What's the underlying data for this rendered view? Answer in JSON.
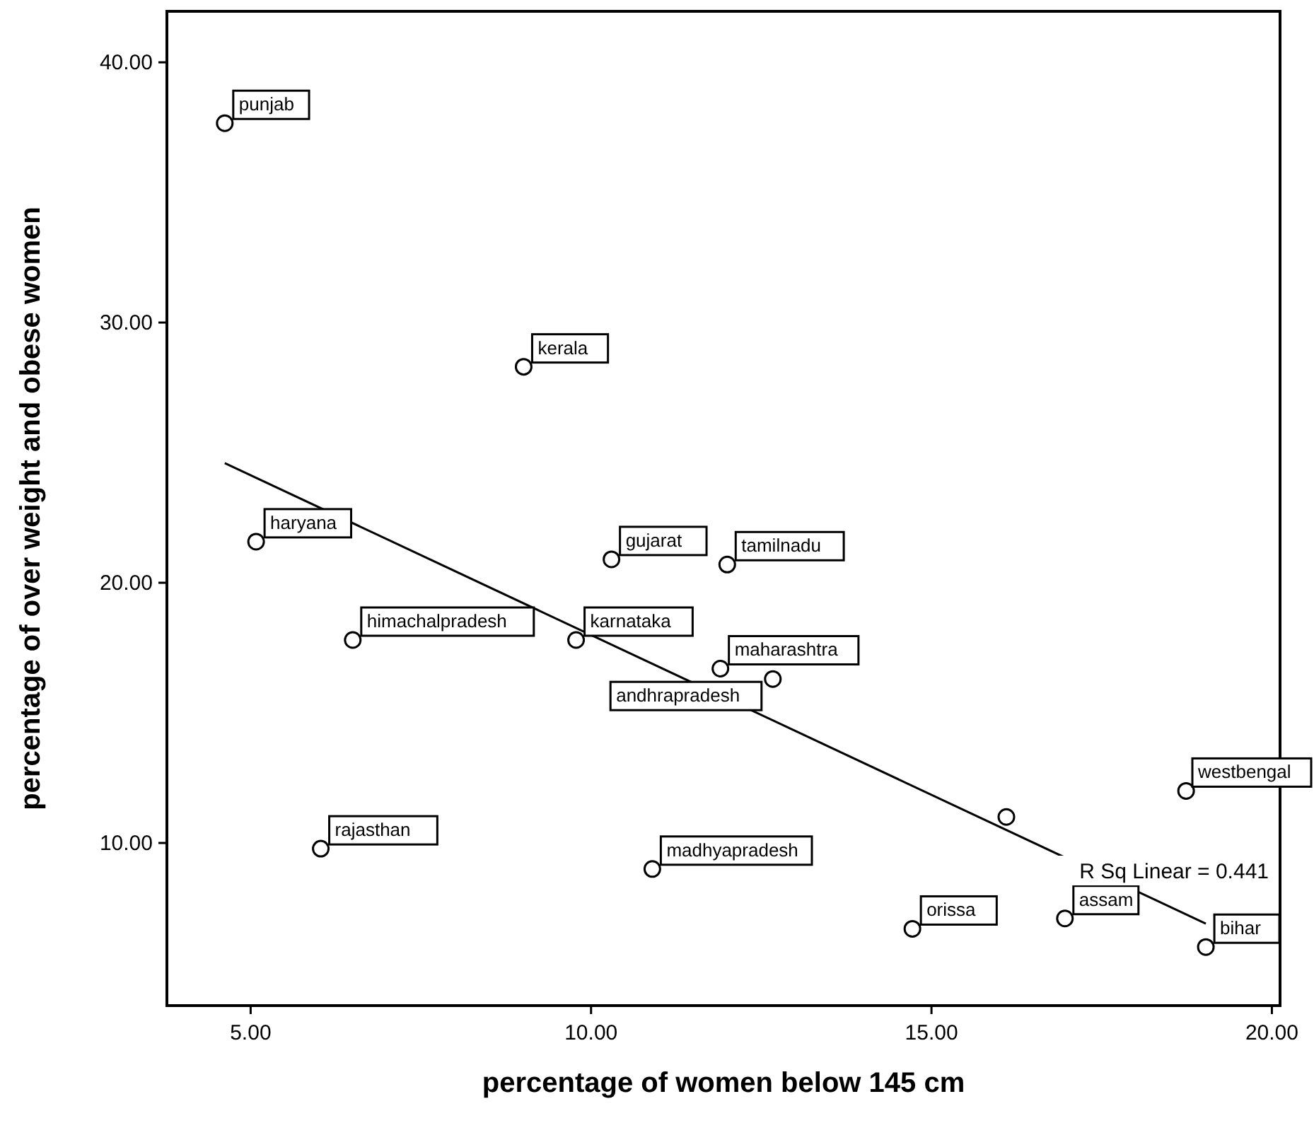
{
  "chart_data": {
    "type": "scatter",
    "xlabel": "percentage of women below 145 cm",
    "ylabel": "percentage of over weight and obese women",
    "xlim": [
      3.77,
      20.12
    ],
    "ylim": [
      3.75,
      41.96
    ],
    "xticks": [
      {
        "value": 5,
        "label": "5.00"
      },
      {
        "value": 10,
        "label": "10.00"
      },
      {
        "value": 15,
        "label": "15.00"
      },
      {
        "value": 20,
        "label": "20.00"
      }
    ],
    "yticks": [
      {
        "value": 10,
        "label": "10.00"
      },
      {
        "value": 20,
        "label": "20.00"
      },
      {
        "value": 30,
        "label": "30.00"
      },
      {
        "value": 40,
        "label": "40.00"
      }
    ],
    "grid": false,
    "marker": "circle",
    "series": [
      {
        "type": "scatter",
        "color": "#000000",
        "x": [
          4.62,
          9.01,
          5.08,
          10.3,
          12.0,
          6.5,
          9.78,
          11.9,
          12.67,
          18.74,
          16.1,
          6.03,
          10.9,
          14.72,
          16.96,
          19.03
        ],
        "values": [
          37.66,
          28.3,
          21.58,
          20.9,
          20.7,
          17.8,
          17.8,
          16.7,
          16.3,
          12.0,
          11.0,
          9.78,
          9.0,
          6.7,
          7.1,
          6.0
        ]
      },
      {
        "type": "line",
        "color": "#000000",
        "marker": "none",
        "x": [
          4.62,
          19.03
        ],
        "values": [
          24.6,
          6.9
        ]
      }
    ],
    "annotations": [
      {
        "text": "punjab",
        "x": 4.62,
        "y": 37.66
      },
      {
        "text": "kerala",
        "x": 9.01,
        "y": 28.3
      },
      {
        "text": "haryana",
        "x": 5.08,
        "y": 21.58
      },
      {
        "text": "gujarat",
        "x": 10.3,
        "y": 20.9
      },
      {
        "text": "tamilnadu",
        "x": 12.0,
        "y": 20.7
      },
      {
        "text": "himachalpradesh",
        "x": 6.5,
        "y": 17.8
      },
      {
        "text": "karnataka",
        "x": 9.78,
        "y": 17.8
      },
      {
        "text": "maharashtra",
        "x": 11.9,
        "y": 16.7
      },
      {
        "text": "andhrapradesh",
        "x": 12.67,
        "y": 16.3
      },
      {
        "text": "westbengal",
        "x": 18.74,
        "y": 12.0
      },
      {
        "text": "rajasthan",
        "x": 6.03,
        "y": 9.78
      },
      {
        "text": "madhyapradesh",
        "x": 10.9,
        "y": 9.0
      },
      {
        "text": "orissa",
        "x": 14.72,
        "y": 6.7
      },
      {
        "text": "assam",
        "x": 16.96,
        "y": 7.1
      },
      {
        "text": "bihar",
        "x": 19.03,
        "y": 6.0
      },
      "R Sq Linear = 0.441"
    ]
  }
}
